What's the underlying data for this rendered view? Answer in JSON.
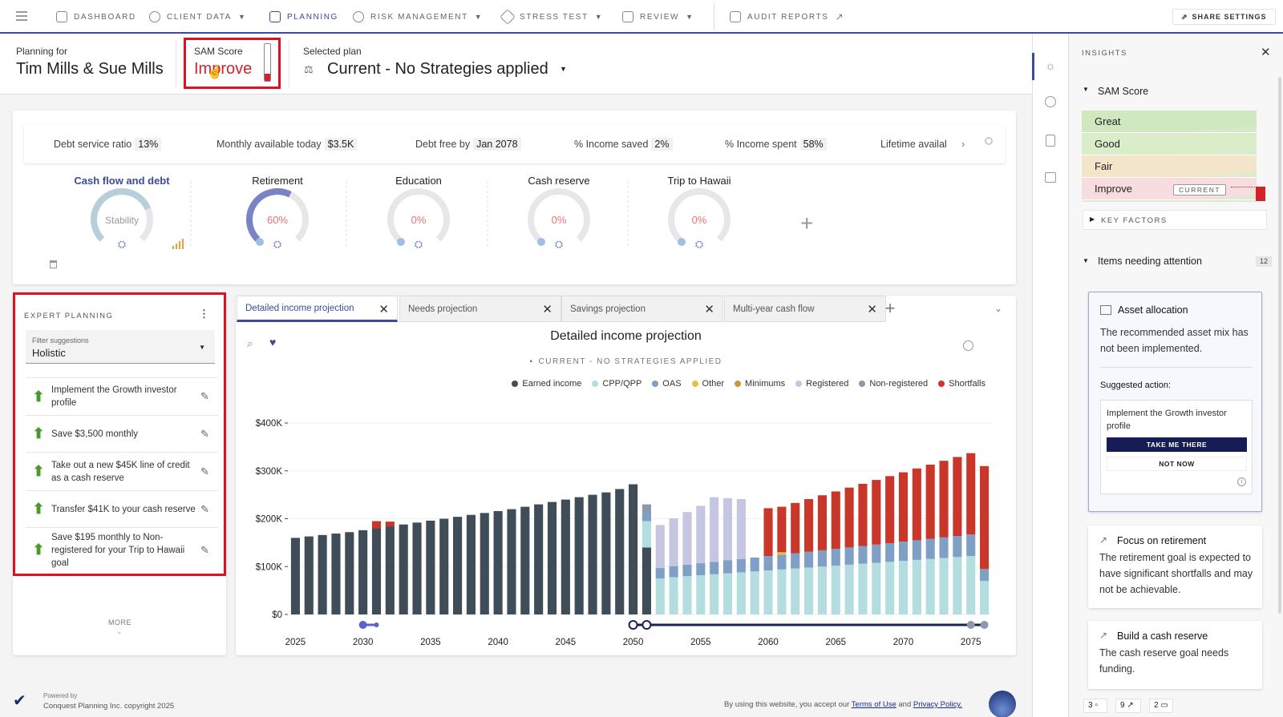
{
  "nav": {
    "items": [
      {
        "label": "DASHBOARD",
        "caret": false
      },
      {
        "label": "CLIENT DATA",
        "caret": true
      },
      {
        "label": "PLANNING",
        "caret": false
      },
      {
        "label": "RISK MANAGEMENT",
        "caret": true
      },
      {
        "label": "STRESS TEST",
        "caret": true
      },
      {
        "label": "REVIEW",
        "caret": true
      },
      {
        "label": "AUDIT REPORTS",
        "caret": false
      }
    ],
    "share_settings": "SHARE SETTINGS"
  },
  "header": {
    "planning_for_label": "Planning for",
    "client_names": "Tim Mills & Sue Mills",
    "sam_label": "SAM Score",
    "sam_value": "Improve",
    "selected_plan_label": "Selected plan",
    "selected_plan": "Current - No Strategies applied"
  },
  "metrics": [
    {
      "label": "Debt service ratio",
      "value": "13%"
    },
    {
      "label": "Monthly available today",
      "value": "$3.5K"
    },
    {
      "label": "Debt free by",
      "value": "Jan 2078"
    },
    {
      "label": "% Income saved",
      "value": "2%"
    },
    {
      "label": "% Income spent",
      "value": "58%"
    },
    {
      "label": "Lifetime availab",
      "value": ""
    }
  ],
  "goals": [
    {
      "title": "Cash flow and debt",
      "center": "Stability",
      "progress": 0.75,
      "color": "#b7cfd8",
      "highlight": true
    },
    {
      "title": "Retirement",
      "center": "60%",
      "progress": 0.6,
      "color": "#7a84c4",
      "highlight": false
    },
    {
      "title": "Education",
      "center": "0%",
      "progress": 0,
      "color": "#e3e3e6",
      "highlight": false
    },
    {
      "title": "Cash reserve",
      "center": "0%",
      "progress": 0,
      "color": "#e3e3e6",
      "highlight": false
    },
    {
      "title": "Trip to Hawaii",
      "center": "0%",
      "progress": 0,
      "color": "#e3e3e6",
      "highlight": false
    }
  ],
  "expert": {
    "title": "EXPERT PLANNING",
    "filter_label": "Filter suggestions",
    "filter_value": "Holistic",
    "suggestions": [
      "Implement the Growth investor profile",
      "Save $3,500 monthly",
      "Take out a new $45K line of credit as a cash reserve",
      "Transfer $41K to your cash reserve",
      "Save $195 monthly to Non-registered for your Trip to Hawaii goal"
    ],
    "more": "MORE"
  },
  "tabs": [
    "Detailed income projection",
    "Needs projection",
    "Savings projection",
    "Multi-year cash flow"
  ],
  "chart_data": {
    "type": "bar",
    "title": "Detailed income projection",
    "subtitle": "CURRENT - NO STRATEGIES APPLIED",
    "xlabel": "",
    "ylabel": "",
    "ylim": [
      0,
      400000
    ],
    "yticks": [
      "$0",
      "$100K",
      "$200K",
      "$300K",
      "$400K"
    ],
    "xticks": [
      "2025",
      "2030",
      "2035",
      "2040",
      "2045",
      "2050",
      "2055",
      "2060",
      "2065",
      "2070",
      "2075"
    ],
    "legend": [
      {
        "name": "Earned income",
        "color": "#3f4d59"
      },
      {
        "name": "CPP/QPP",
        "color": "#b4dde0"
      },
      {
        "name": "OAS",
        "color": "#7f9fc4"
      },
      {
        "name": "Other",
        "color": "#e6c23a"
      },
      {
        "name": "Minimums",
        "color": "#c99a3a"
      },
      {
        "name": "Registered",
        "color": "#c5c7e2"
      },
      {
        "name": "Non-registered",
        "color": "#8e98ac"
      },
      {
        "name": "Shortfalls",
        "color": "#c8372a"
      }
    ],
    "years": [
      2025,
      2026,
      2027,
      2028,
      2029,
      2030,
      2031,
      2032,
      2033,
      2034,
      2035,
      2036,
      2037,
      2038,
      2039,
      2040,
      2041,
      2042,
      2043,
      2044,
      2045,
      2046,
      2047,
      2048,
      2049,
      2050,
      2051,
      2052,
      2053,
      2054,
      2055,
      2056,
      2057,
      2058,
      2059,
      2060,
      2061,
      2062,
      2063,
      2064,
      2065,
      2066,
      2067,
      2068,
      2069,
      2070,
      2071,
      2072,
      2073,
      2074,
      2075,
      2076
    ],
    "series": [
      {
        "name": "Earned income",
        "values": [
          160000,
          163000,
          166000,
          169000,
          172000,
          176000,
          180000,
          184000,
          188000,
          192000,
          196000,
          200000,
          204000,
          208000,
          212000,
          216000,
          220000,
          225000,
          230000,
          235000,
          240000,
          245000,
          250000,
          255000,
          262000,
          272000,
          140000,
          0,
          0,
          0,
          0,
          0,
          0,
          0,
          0,
          0,
          0,
          0,
          0,
          0,
          0,
          0,
          0,
          0,
          0,
          0,
          0,
          0,
          0,
          0,
          0,
          0
        ]
      },
      {
        "name": "CPP/QPP",
        "values": [
          0,
          0,
          0,
          0,
          0,
          0,
          0,
          0,
          0,
          0,
          0,
          0,
          0,
          0,
          0,
          0,
          0,
          0,
          0,
          0,
          0,
          0,
          0,
          0,
          0,
          0,
          55000,
          75000,
          78000,
          80000,
          82000,
          84000,
          86000,
          88000,
          90000,
          92000,
          94000,
          96000,
          98000,
          100000,
          102000,
          104000,
          106000,
          108000,
          110000,
          112000,
          114000,
          116000,
          118000,
          120000,
          122000,
          70000
        ]
      },
      {
        "name": "OAS",
        "values": [
          0,
          0,
          0,
          0,
          0,
          0,
          0,
          0,
          0,
          0,
          0,
          0,
          0,
          0,
          0,
          0,
          0,
          0,
          0,
          0,
          0,
          0,
          0,
          0,
          0,
          0,
          20000,
          22000,
          23000,
          24000,
          25000,
          26000,
          27000,
          28000,
          29000,
          30000,
          31000,
          32000,
          33000,
          34000,
          35000,
          36000,
          37000,
          38000,
          39000,
          40000,
          41000,
          42000,
          43000,
          44000,
          45000,
          25000
        ]
      },
      {
        "name": "Other",
        "values": [
          0,
          0,
          0,
          0,
          0,
          0,
          0,
          0,
          0,
          0,
          0,
          0,
          0,
          0,
          0,
          0,
          0,
          0,
          0,
          0,
          0,
          0,
          0,
          0,
          0,
          0,
          0,
          0,
          0,
          0,
          0,
          0,
          0,
          0,
          0,
          0,
          5000,
          0,
          0,
          0,
          0,
          0,
          0,
          0,
          0,
          0,
          0,
          0,
          0,
          0,
          0,
          0
        ]
      },
      {
        "name": "Minimums",
        "values": [
          0,
          0,
          0,
          0,
          0,
          0,
          0,
          0,
          0,
          0,
          0,
          0,
          0,
          0,
          0,
          0,
          0,
          0,
          0,
          0,
          0,
          0,
          0,
          0,
          0,
          0,
          0,
          0,
          0,
          0,
          0,
          0,
          0,
          0,
          0,
          0,
          0,
          0,
          0,
          0,
          0,
          0,
          0,
          0,
          0,
          0,
          0,
          0,
          0,
          0,
          0,
          0
        ]
      },
      {
        "name": "Registered",
        "values": [
          0,
          0,
          0,
          0,
          0,
          0,
          0,
          0,
          0,
          0,
          0,
          0,
          0,
          0,
          0,
          0,
          0,
          0,
          0,
          0,
          0,
          0,
          0,
          0,
          0,
          0,
          0,
          90000,
          100000,
          110000,
          120000,
          135000,
          130000,
          125000,
          0,
          0,
          0,
          0,
          0,
          0,
          0,
          0,
          0,
          0,
          0,
          0,
          0,
          0,
          0,
          0,
          0,
          0
        ]
      },
      {
        "name": "Non-registered",
        "values": [
          0,
          0,
          0,
          0,
          0,
          0,
          0,
          0,
          0,
          0,
          0,
          0,
          0,
          0,
          0,
          0,
          0,
          0,
          0,
          0,
          0,
          0,
          0,
          0,
          0,
          0,
          15000,
          0,
          0,
          0,
          0,
          0,
          0,
          0,
          0,
          0,
          0,
          0,
          0,
          0,
          0,
          0,
          0,
          0,
          0,
          0,
          0,
          0,
          0,
          0,
          0,
          0
        ]
      },
      {
        "name": "Shortfalls",
        "values": [
          0,
          0,
          0,
          0,
          0,
          0,
          15000,
          10000,
          0,
          0,
          0,
          0,
          0,
          0,
          0,
          0,
          0,
          0,
          0,
          0,
          0,
          0,
          0,
          0,
          0,
          0,
          0,
          0,
          0,
          0,
          0,
          0,
          0,
          0,
          0,
          100000,
          95000,
          105000,
          110000,
          115000,
          120000,
          125000,
          130000,
          135000,
          140000,
          145000,
          150000,
          155000,
          160000,
          165000,
          170000,
          215000
        ]
      }
    ]
  },
  "insights": {
    "title": "INSIGHTS",
    "sam_section": "SAM Score",
    "bands": [
      "Great",
      "Good",
      "Fair",
      "Improve"
    ],
    "current_tag": "CURRENT",
    "key_factors": "KEY FACTORS",
    "attention_title": "Items needing attention",
    "attention_count": "12",
    "cards": [
      {
        "title": "Asset allocation",
        "body": "The recommended asset mix has not been implemented.",
        "suggested_label": "Suggested action:",
        "action_text": "Implement the Growth investor profile",
        "primary": "TAKE ME THERE",
        "secondary": "NOT NOW"
      },
      {
        "title": "Focus on retirement",
        "body": "The retirement goal is expected to have significant shortfalls and may not be achievable."
      },
      {
        "title": "Build a cash reserve",
        "body": "The cash reserve goal needs funding."
      }
    ],
    "footer_counts": [
      "3",
      "9",
      "2"
    ]
  },
  "footer": {
    "powered_by": "Powered by",
    "copyright": "Conquest Planning Inc. copyright 2025",
    "accept_text": "By using this website, you accept our",
    "terms": "Terms of Use",
    "and": "and",
    "privacy": "Privacy Policy."
  },
  "colors": {
    "accent": "#3b4a9a",
    "highlight": "#e01020",
    "shortfall": "#c8372a"
  }
}
